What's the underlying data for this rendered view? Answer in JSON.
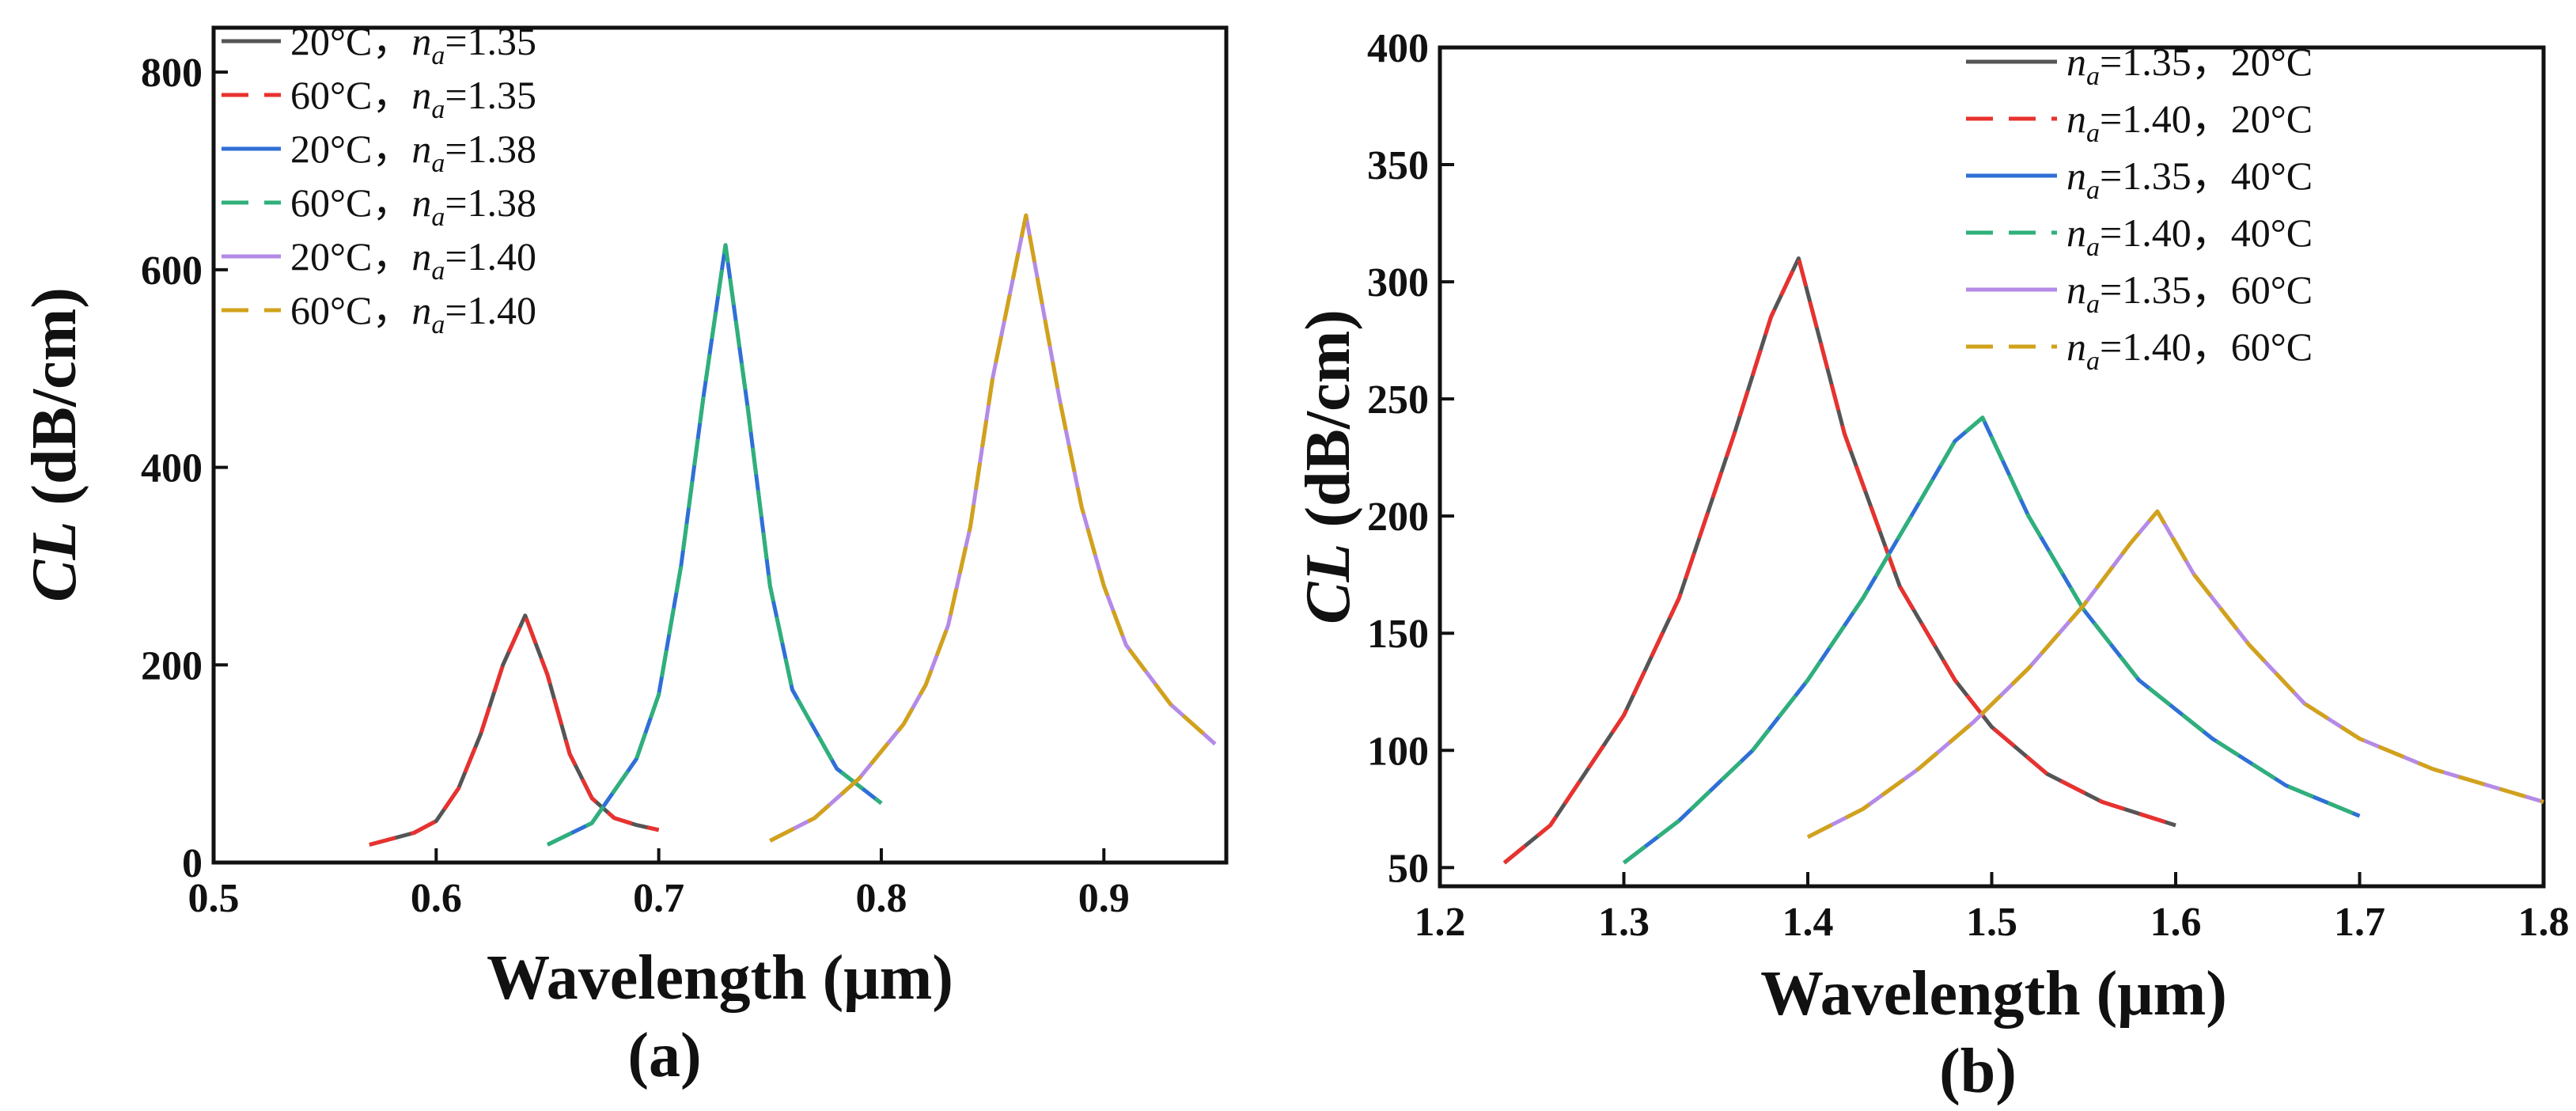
{
  "figure": {
    "charts_count": 2
  },
  "chart_data": [
    {
      "type": "line",
      "panel_label": "(a)",
      "title": "",
      "xlabel": "Wavelength (μm)",
      "ylabel_main": "CL",
      "ylabel_unit": " (dB/cm)",
      "xlim": [
        0.5,
        0.955
      ],
      "ylim": [
        0,
        845
      ],
      "xticks": [
        0.5,
        0.6,
        0.7,
        0.8,
        0.9
      ],
      "xtick_labels": [
        "0.5",
        "0.6",
        "0.7",
        "0.8",
        "0.9"
      ],
      "yticks": [
        0,
        200,
        400,
        600,
        800
      ],
      "ytick_labels": [
        "0",
        "200",
        "400",
        "600",
        "800"
      ],
      "legend_position": "top-left",
      "series": [
        {
          "temp": "20°C，",
          "na_label": "=1.35",
          "color": "#555555",
          "dash": false,
          "x": [
            0.57,
            0.59,
            0.6,
            0.61,
            0.62,
            0.63,
            0.64,
            0.65,
            0.66,
            0.67,
            0.68,
            0.69,
            0.7
          ],
          "y": [
            18,
            30,
            42,
            75,
            130,
            200,
            250,
            190,
            110,
            65,
            45,
            38,
            33
          ]
        },
        {
          "temp": "60°C，",
          "na_label": "=1.35",
          "color": "#e8322f",
          "dash": true,
          "x": [
            0.57,
            0.59,
            0.6,
            0.61,
            0.62,
            0.63,
            0.64,
            0.65,
            0.66,
            0.67,
            0.68,
            0.69,
            0.7
          ],
          "y": [
            18,
            30,
            42,
            75,
            130,
            200,
            250,
            190,
            110,
            65,
            45,
            38,
            33
          ]
        },
        {
          "temp": "20°C，",
          "na_label": "=1.38",
          "color": "#2f6fd6",
          "dash": false,
          "x": [
            0.65,
            0.67,
            0.69,
            0.7,
            0.71,
            0.72,
            0.73,
            0.74,
            0.75,
            0.76,
            0.78,
            0.8
          ],
          "y": [
            18,
            40,
            105,
            170,
            300,
            470,
            625,
            460,
            280,
            175,
            95,
            60
          ]
        },
        {
          "temp": "60°C，",
          "na_label": "=1.38",
          "color": "#2fb07a",
          "dash": true,
          "x": [
            0.65,
            0.67,
            0.69,
            0.7,
            0.71,
            0.72,
            0.73,
            0.74,
            0.75,
            0.76,
            0.78,
            0.8
          ],
          "y": [
            18,
            40,
            105,
            170,
            300,
            470,
            625,
            460,
            280,
            175,
            95,
            60
          ]
        },
        {
          "temp": "20°C，",
          "na_label": "=1.40",
          "color": "#b48ae6",
          "dash": false,
          "x": [
            0.75,
            0.77,
            0.79,
            0.81,
            0.82,
            0.83,
            0.84,
            0.85,
            0.865,
            0.88,
            0.89,
            0.9,
            0.91,
            0.93,
            0.95
          ],
          "y": [
            22,
            45,
            85,
            140,
            180,
            240,
            340,
            490,
            655,
            470,
            360,
            280,
            220,
            160,
            120
          ]
        },
        {
          "temp": "60°C，",
          "na_label": "=1.40",
          "color": "#d1a21a",
          "dash": true,
          "x": [
            0.75,
            0.77,
            0.79,
            0.81,
            0.82,
            0.83,
            0.84,
            0.85,
            0.865,
            0.88,
            0.89,
            0.9,
            0.91,
            0.93,
            0.95
          ],
          "y": [
            22,
            45,
            85,
            140,
            180,
            240,
            340,
            490,
            655,
            470,
            360,
            280,
            220,
            160,
            120
          ]
        }
      ]
    },
    {
      "type": "line",
      "panel_label": "(b)",
      "title": "",
      "xlabel": "Wavelength (μm)",
      "ylabel_main": "CL",
      "ylabel_unit": " (dB/cm)",
      "xlim": [
        1.2,
        1.8
      ],
      "ylim": [
        42,
        400
      ],
      "xticks": [
        1.2,
        1.3,
        1.4,
        1.5,
        1.6,
        1.7,
        1.8
      ],
      "xtick_labels": [
        "1.2",
        "1.3",
        "1.4",
        "1.5",
        "1.6",
        "1.7",
        "1.8"
      ],
      "yticks": [
        50,
        100,
        150,
        200,
        250,
        300,
        350,
        400
      ],
      "ytick_labels": [
        "50",
        "100",
        "150",
        "200",
        "250",
        "300",
        "350",
        "400"
      ],
      "legend_position": "top-right",
      "series": [
        {
          "temp": "，20°C",
          "na_label": "=1.35",
          "color": "#555555",
          "dash": false,
          "x": [
            1.235,
            1.26,
            1.3,
            1.33,
            1.36,
            1.38,
            1.395,
            1.42,
            1.45,
            1.48,
            1.5,
            1.53,
            1.56,
            1.6
          ],
          "y": [
            52,
            68,
            115,
            165,
            235,
            285,
            310,
            235,
            170,
            130,
            110,
            90,
            78,
            68
          ]
        },
        {
          "temp": "，20°C",
          "na_label": "=1.40",
          "color": "#e8322f",
          "dash": true,
          "x": [
            1.235,
            1.26,
            1.3,
            1.33,
            1.36,
            1.38,
            1.395,
            1.42,
            1.45,
            1.48,
            1.5,
            1.53,
            1.56,
            1.6
          ],
          "y": [
            52,
            68,
            115,
            165,
            235,
            285,
            310,
            235,
            170,
            130,
            110,
            90,
            78,
            68
          ]
        },
        {
          "temp": "，40°C",
          "na_label": "=1.35",
          "color": "#2f6fd6",
          "dash": false,
          "x": [
            1.3,
            1.33,
            1.37,
            1.4,
            1.43,
            1.46,
            1.48,
            1.495,
            1.52,
            1.55,
            1.58,
            1.62,
            1.66,
            1.7
          ],
          "y": [
            52,
            70,
            100,
            130,
            165,
            205,
            232,
            242,
            200,
            160,
            130,
            105,
            85,
            72
          ]
        },
        {
          "temp": "，40°C",
          "na_label": "=1.40",
          "color": "#2fb07a",
          "dash": true,
          "x": [
            1.3,
            1.33,
            1.37,
            1.4,
            1.43,
            1.46,
            1.48,
            1.495,
            1.52,
            1.55,
            1.58,
            1.62,
            1.66,
            1.7
          ],
          "y": [
            52,
            70,
            100,
            130,
            165,
            205,
            232,
            242,
            200,
            160,
            130,
            105,
            85,
            72
          ]
        },
        {
          "temp": "，60°C",
          "na_label": "=1.35",
          "color": "#b48ae6",
          "dash": false,
          "x": [
            1.4,
            1.43,
            1.46,
            1.49,
            1.52,
            1.55,
            1.575,
            1.59,
            1.61,
            1.64,
            1.67,
            1.7,
            1.74,
            1.8
          ],
          "y": [
            63,
            75,
            92,
            112,
            135,
            162,
            188,
            202,
            175,
            145,
            120,
            105,
            92,
            78
          ]
        },
        {
          "temp": "，60°C",
          "na_label": "=1.40",
          "color": "#d1a21a",
          "dash": true,
          "x": [
            1.4,
            1.43,
            1.46,
            1.49,
            1.52,
            1.55,
            1.575,
            1.59,
            1.61,
            1.64,
            1.67,
            1.7,
            1.74,
            1.8
          ],
          "y": [
            63,
            75,
            92,
            112,
            135,
            162,
            188,
            202,
            175,
            145,
            120,
            105,
            92,
            78
          ]
        }
      ]
    }
  ]
}
